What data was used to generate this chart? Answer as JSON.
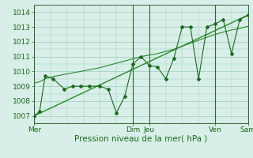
{
  "xlabel": "Pression niveau de la mer( hPa )",
  "bg_color": "#d8eee8",
  "grid_color": "#99ccbb",
  "line_color": "#1a6b1a",
  "trend_color": "#2a8a2a",
  "vline_color": "#336633",
  "ylim": [
    1006.5,
    1014.5
  ],
  "xlim": [
    0,
    156
  ],
  "day_labels": [
    "Mer",
    "Dim",
    "Jeu",
    "Ven",
    "Sam"
  ],
  "day_positions": [
    0,
    72,
    84,
    132,
    156
  ],
  "main_series_x": [
    0,
    4,
    8,
    14,
    22,
    28,
    34,
    40,
    48,
    54,
    60,
    66,
    72,
    78,
    84,
    90,
    96,
    102,
    108,
    114,
    120,
    126,
    132,
    138,
    144,
    150,
    156
  ],
  "main_series_y": [
    1007.0,
    1007.3,
    1009.7,
    1009.5,
    1008.8,
    1009.0,
    1009.0,
    1009.0,
    1009.0,
    1008.8,
    1007.2,
    1008.3,
    1010.5,
    1011.0,
    1010.4,
    1010.3,
    1009.5,
    1010.9,
    1013.0,
    1013.0,
    1009.5,
    1013.0,
    1013.2,
    1013.5,
    1011.2,
    1013.5,
    1013.8
  ],
  "trend_x": [
    0,
    156
  ],
  "trend_y": [
    1007.0,
    1013.8
  ],
  "smooth_x": [
    0,
    4,
    8,
    14,
    22,
    28,
    34,
    40,
    48,
    54,
    60,
    66,
    72,
    78,
    84,
    90,
    96,
    102,
    108,
    114,
    120,
    126,
    132,
    138,
    144,
    150,
    156
  ],
  "smooth_y": [
    1009.2,
    1009.3,
    1009.5,
    1009.65,
    1009.8,
    1009.9,
    1010.0,
    1010.1,
    1010.25,
    1010.4,
    1010.55,
    1010.7,
    1010.85,
    1011.0,
    1011.1,
    1011.2,
    1011.35,
    1011.5,
    1011.7,
    1011.9,
    1012.1,
    1012.3,
    1012.5,
    1012.65,
    1012.8,
    1012.9,
    1013.05
  ],
  "yticks": [
    1007,
    1008,
    1009,
    1010,
    1011,
    1012,
    1013,
    1014
  ],
  "xlabel_fontsize": 7.5,
  "tick_fontsize": 6.5
}
